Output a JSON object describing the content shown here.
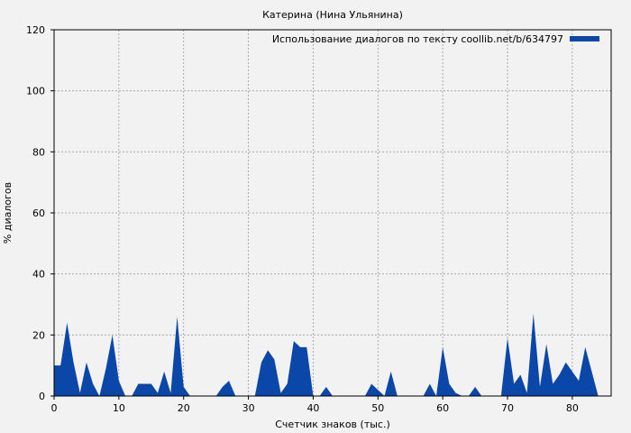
{
  "chart_data": {
    "type": "area",
    "title": "Катерина (Нина Ульянина)",
    "xlabel": "Счетчик знаков (тыс.)",
    "ylabel": "% диалогов",
    "xlim": [
      0,
      86
    ],
    "ylim": [
      0,
      120
    ],
    "xticks": [
      0,
      10,
      20,
      30,
      40,
      50,
      60,
      70,
      80
    ],
    "yticks": [
      0,
      20,
      40,
      60,
      80,
      100,
      120
    ],
    "xtick_labels": [
      "0",
      "10",
      "20",
      "30",
      "40",
      "50",
      "60",
      "70",
      "80"
    ],
    "ytick_labels": [
      "0",
      "20",
      "40",
      "60",
      "80",
      "100",
      "120"
    ],
    "grid": true,
    "legend_position": "top-right",
    "colors": {
      "series": "#0a47a8",
      "background": "#f2f2f2",
      "grid": "#999999"
    },
    "series": [
      {
        "name": "Использование диалогов по тексту coollib.net/b/634797",
        "x": [
          0,
          1,
          2,
          3,
          4,
          5,
          6,
          7,
          8,
          9,
          10,
          11,
          12,
          13,
          14,
          15,
          16,
          17,
          18,
          19,
          20,
          21,
          22,
          23,
          24,
          25,
          26,
          27,
          28,
          29,
          30,
          31,
          32,
          33,
          34,
          35,
          36,
          37,
          38,
          39,
          40,
          41,
          42,
          43,
          44,
          45,
          46,
          47,
          48,
          49,
          50,
          51,
          52,
          53,
          54,
          55,
          56,
          57,
          58,
          59,
          60,
          61,
          62,
          63,
          64,
          65,
          66,
          67,
          68,
          69,
          70,
          71,
          72,
          73,
          74,
          75,
          76,
          77,
          78,
          79,
          80,
          81,
          82,
          83,
          84
        ],
        "y": [
          10,
          10,
          24,
          11,
          1,
          11,
          4,
          0,
          9,
          20,
          5,
          0,
          0,
          4,
          4,
          4,
          1,
          8,
          1,
          26,
          3,
          0,
          0,
          0,
          0,
          0,
          3,
          5,
          0,
          0,
          0,
          0,
          11,
          15,
          12,
          1,
          4,
          18,
          16,
          16,
          0,
          0,
          3,
          0,
          0,
          0,
          0,
          0,
          0,
          4,
          2,
          0,
          8,
          0,
          0,
          0,
          0,
          0,
          4,
          0,
          16,
          4,
          1,
          0,
          0,
          3,
          0,
          0,
          0,
          0,
          19,
          4,
          7,
          1,
          27,
          3,
          17,
          4,
          7,
          11,
          8,
          5,
          16,
          8,
          0
        ]
      }
    ]
  }
}
